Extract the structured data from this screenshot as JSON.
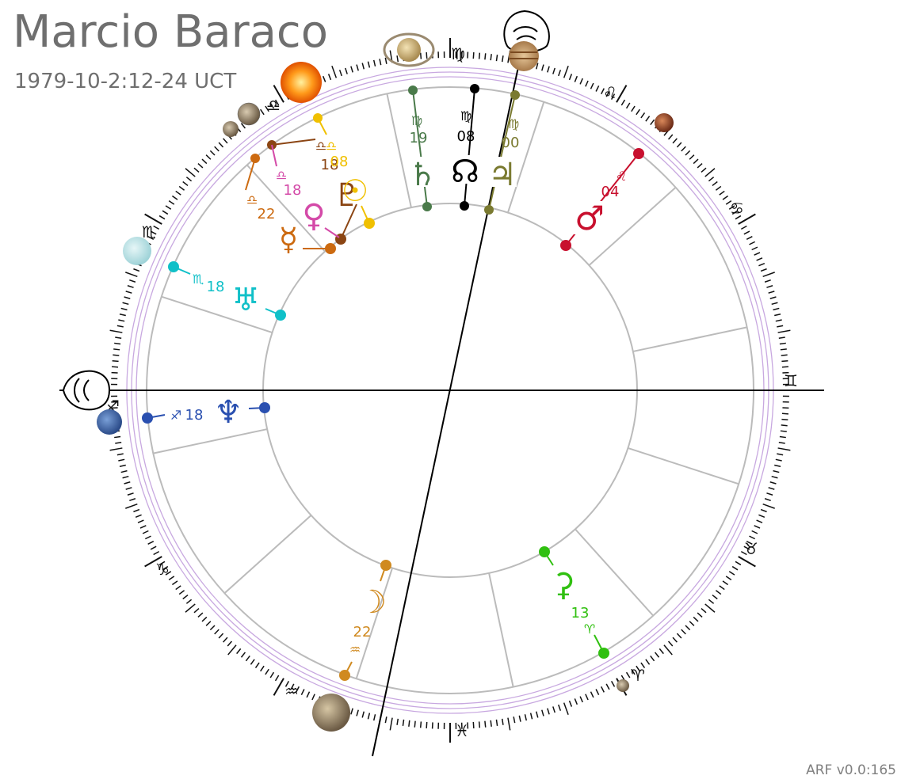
{
  "header": {
    "title": "Marcio Baraco",
    "subtitle": "1979-10-2:12-24 UCT"
  },
  "footer": {
    "version": "ARF v0.0:165"
  },
  "chart_data": {
    "type": "radial",
    "sign_ring": [
      "♍",
      "♌",
      "♋",
      "♊",
      "♉",
      "♈",
      "♓",
      "♒",
      "♑",
      "♐",
      "♏",
      "♎"
    ],
    "planets": [
      {
        "name": "saturn",
        "glyph": "♄",
        "sign": "♍",
        "degree": "19",
        "color": "#4a7a4a"
      },
      {
        "name": "north-node",
        "glyph": "☊",
        "sign": "♍",
        "degree": "08",
        "color": "#000000"
      },
      {
        "name": "jupiter",
        "glyph": "♃",
        "sign": "♍",
        "degree": "00",
        "color": "#7a7a30"
      },
      {
        "name": "mars",
        "glyph": "♂",
        "sign": "♌",
        "degree": "04",
        "color": "#c8102e"
      },
      {
        "name": "pluto",
        "glyph": "♇",
        "sign": "♎",
        "degree": "18",
        "color": "#8b4513"
      },
      {
        "name": "sun",
        "glyph": "☉",
        "sign": "♎",
        "degree": "08",
        "color": "#f0c000"
      },
      {
        "name": "venus",
        "glyph": "♀",
        "sign": "♎",
        "degree": "18",
        "color": "#d44aa8"
      },
      {
        "name": "mercury",
        "glyph": "☿",
        "sign": "♎",
        "degree": "22",
        "color": "#cc6a10"
      },
      {
        "name": "uranus",
        "glyph": "♅",
        "sign": "♏",
        "degree": "18",
        "color": "#10c0c8"
      },
      {
        "name": "neptune",
        "glyph": "♆",
        "sign": "♐",
        "degree": "18",
        "color": "#2a50b0"
      },
      {
        "name": "moon",
        "glyph": "☽",
        "sign": "♒",
        "degree": "22",
        "color": "#d08a20"
      },
      {
        "name": "chiron",
        "glyph": "⚳",
        "sign": "♈",
        "degree": "13",
        "color": "#30c010"
      }
    ]
  }
}
